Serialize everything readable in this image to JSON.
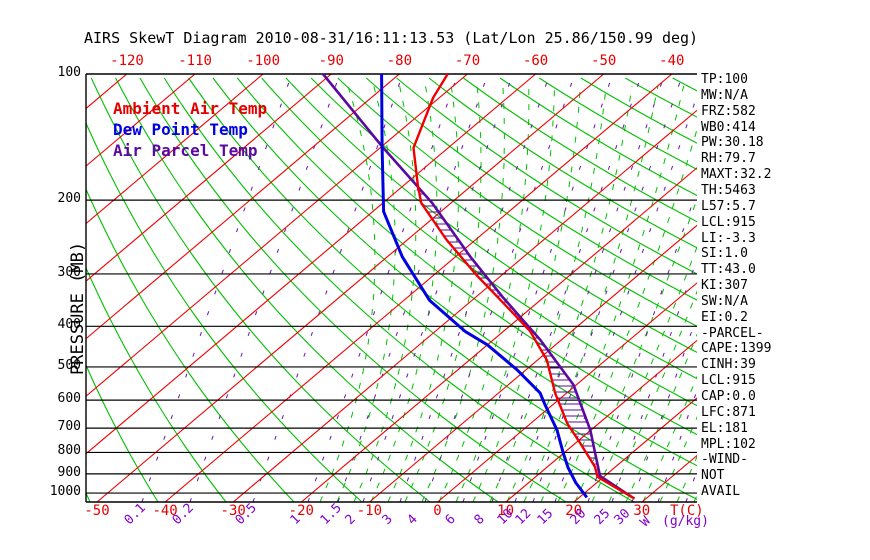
{
  "title": "AIRS SkewT Diagram 2010-08-31/16:11:13.53 (Lat/Lon 25.86/150.99 deg)",
  "legend": {
    "items": [
      {
        "label": "Ambient Air Temp",
        "color": "#e60000"
      },
      {
        "label": "Dew Point Temp",
        "color": "#0000e0"
      },
      {
        "label": "Air Parcel Temp",
        "color": "#5a0aa0"
      }
    ]
  },
  "y_axis": {
    "label": "PRESSURE (MB)",
    "ticks": [
      "100",
      "200",
      "300",
      "400",
      "500",
      "600",
      "700",
      "800",
      "900",
      "1000"
    ],
    "scale": "log",
    "range_mb": [
      100,
      1050
    ]
  },
  "x_axis_top": {
    "ticks": [
      "-120",
      "-110",
      "-100",
      "-90",
      "-80",
      "-70",
      "-60",
      "-50",
      "-40"
    ],
    "color": "#e60000"
  },
  "x_axis_bottom": {
    "ticks": [
      "-50",
      "-40",
      "-30",
      "-20",
      "-10",
      "0",
      "10",
      "20",
      "30"
    ],
    "unit": "T(C)",
    "color": "#e60000"
  },
  "mixing_ratio_axis": {
    "ticks": [
      "0.1",
      "0.2",
      "0.5",
      "1",
      "1.5",
      "2",
      "3",
      "4",
      "6",
      "8",
      "10",
      "12",
      "15",
      "20",
      "25",
      "30"
    ],
    "symbol": "W",
    "unit": "(g/kg)",
    "color": "#8000d0"
  },
  "stats_panel": [
    "TP:100",
    "MW:N/A",
    "FRZ:582",
    "WB0:414",
    "PW:30.18",
    "RH:79.7",
    "MAXT:32.2",
    "TH:5463",
    "L57:5.7",
    "LCL:915",
    "LI:-3.3",
    "SI:1.0",
    "TT:43.0",
    "KI:307",
    "SW:N/A",
    "EI:0.2",
    "-PARCEL-",
    "CAPE:1399",
    "CINH:39",
    "LCL:915",
    "CAP:0.0",
    "LFC:871",
    "EL:181",
    "MPL:102",
    "-WIND-",
    "NOT",
    "AVAIL"
  ],
  "chart_data": {
    "type": "line",
    "title": "AIRS SkewT Diagram 2010-08-31/16:11:13.53 (Lat/Lon 25.86/150.99 deg)",
    "x_axis": {
      "label": "T(C)",
      "ticks_bottom": [
        -50,
        -40,
        -30,
        -20,
        -10,
        0,
        10,
        20,
        30
      ],
      "ticks_top": [
        -120,
        -110,
        -100,
        -90,
        -80,
        -70,
        -60,
        -50,
        -40
      ],
      "skew": "isotherms slant up-right 45deg"
    },
    "y_axis": {
      "label": "PRESSURE (MB)",
      "scale": "log",
      "ticks": [
        100,
        200,
        300,
        400,
        500,
        600,
        700,
        800,
        900,
        1000
      ],
      "range": [
        100,
        1050
      ]
    },
    "mixing_ratio_g_kg": [
      0.1,
      0.2,
      0.5,
      1,
      1.5,
      2,
      3,
      4,
      6,
      8,
      10,
      12,
      15,
      20,
      25,
      30
    ],
    "legend_position": "top-left inside plot",
    "grid": "isotherms (red), dry adiabats (green solid), moist adiabats (green dashed), mixing ratio (purple dashed), isobars (black)",
    "hatched_region": "CAPE area hatched horizontally between Ambient Air Temp and Air Parcel Temp curves",
    "series": [
      {
        "name": "Ambient Air Temp",
        "color": "#f00000",
        "points_p_mb_t_c": [
          [
            1030,
            28.3
          ],
          [
            975,
            24.0
          ],
          [
            915,
            19.1
          ],
          [
            866,
            17.0
          ],
          [
            760,
            10.7
          ],
          [
            681,
            5.3
          ],
          [
            577,
            -1.7
          ],
          [
            482,
            -8.6
          ],
          [
            411,
            -16.1
          ],
          [
            366,
            -22.7
          ],
          [
            302,
            -33.7
          ],
          [
            249,
            -44.2
          ],
          [
            203,
            -54.4
          ],
          [
            184,
            -58.0
          ],
          [
            150,
            -65.1
          ],
          [
            114,
            -70.9
          ],
          [
            100,
            -72.9
          ]
        ]
      },
      {
        "name": "Dew Point Temp",
        "color": "#0000e0",
        "points_p_mb_t_c": [
          [
            1024,
            21.1
          ],
          [
            944,
            16.9
          ],
          [
            870,
            13.2
          ],
          [
            802,
            9.9
          ],
          [
            707,
            5.0
          ],
          [
            616,
            -1.1
          ],
          [
            577,
            -3.9
          ],
          [
            508,
            -11.3
          ],
          [
            443,
            -20.0
          ],
          [
            412,
            -25.5
          ],
          [
            347,
            -36.2
          ],
          [
            273,
            -47.8
          ],
          [
            213,
            -58.4
          ],
          [
            150,
            -69.7
          ],
          [
            100,
            -82.6
          ]
        ]
      },
      {
        "name": "Air Parcel Temp",
        "color": "#5a0aa0",
        "points_p_mb_t_c": [
          [
            1024,
            27.8
          ],
          [
            910,
            19.3
          ],
          [
            798,
            14.4
          ],
          [
            707,
            9.9
          ],
          [
            552,
            -0.4
          ],
          [
            431,
            -13.1
          ],
          [
            341,
            -26.0
          ],
          [
            273,
            -37.8
          ],
          [
            203,
            -52.8
          ],
          [
            149,
            -69.9
          ],
          [
            100,
            -91.2
          ]
        ]
      }
    ]
  }
}
